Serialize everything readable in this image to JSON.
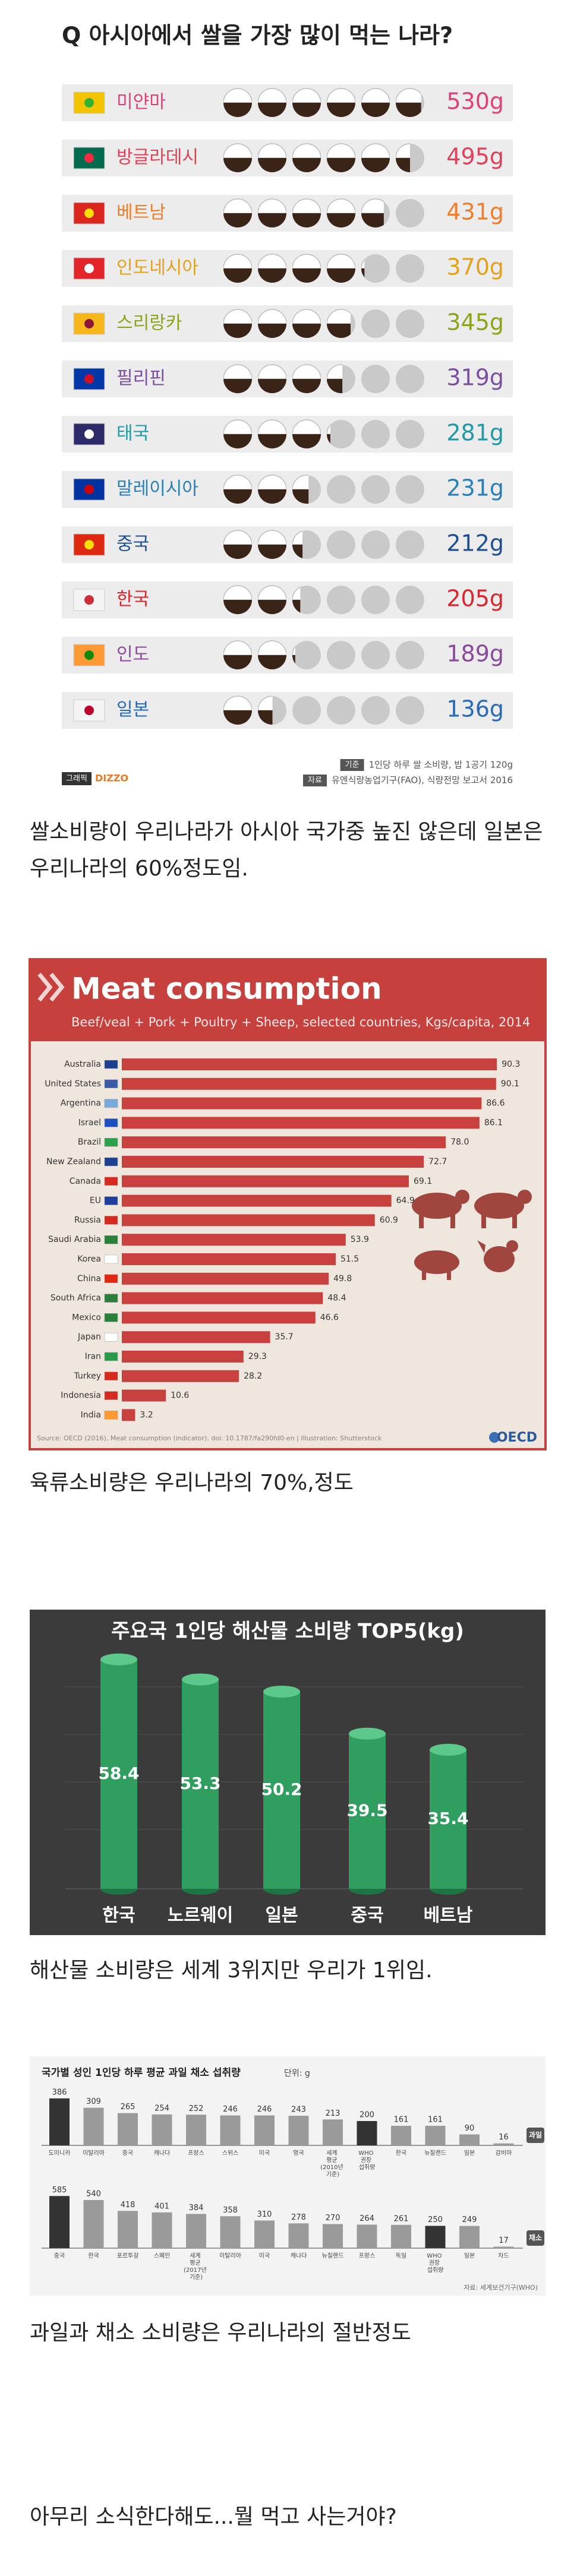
{
  "chart_data": [
    {
      "type": "pictograph",
      "title": "Q 아시아에서 쌀을 가장 많이 먹는 나라?",
      "categories": [
        "미얀마",
        "방글라데시",
        "베트남",
        "인도네시아",
        "스리랑카",
        "필리핀",
        "태국",
        "말레이시아",
        "중국",
        "한국",
        "인도",
        "일본"
      ],
      "values": [
        530,
        495,
        431,
        370,
        345,
        319,
        281,
        231,
        212,
        205,
        189,
        136
      ],
      "value_labels": [
        "530g",
        "495g",
        "431g",
        "370g",
        "345g",
        "319g",
        "281g",
        "231g",
        "212g",
        "205g",
        "189g",
        "136g"
      ],
      "colors": [
        "#e0407a",
        "#e0405a",
        "#ef7d2a",
        "#e3a21a",
        "#8aa51c",
        "#7a4ea0",
        "#1f9aa5",
        "#2a7fb5",
        "#1f4f8f",
        "#d8262e",
        "#8a4a9a",
        "#2a6ab5"
      ],
      "notes": [
        {
          "tag": "기준",
          "text": "1인당 하루 쌀 소비량, 밥 1공기 120g"
        },
        {
          "tag": "자료",
          "text": "유엔식량농업기구(FAO), 식량전망 보고서 2016"
        }
      ],
      "credit": {
        "tag": "그래픽",
        "text": "DIZZO"
      }
    },
    {
      "type": "bar",
      "orientation": "horizontal",
      "title": "Meat consumption",
      "subtitle": "Beef/veal + Pork + Poultry + Sheep, selected countries, Kgs/capita, 2014",
      "categories": [
        "Australia",
        "United States",
        "Argentina",
        "Israel",
        "Brazil",
        "New Zealand",
        "Canada",
        "EU",
        "Russia",
        "Saudi Arabia",
        "Korea",
        "China",
        "South Africa",
        "Mexico",
        "Japan",
        "Iran",
        "Turkey",
        "Indonesia",
        "India"
      ],
      "values": [
        90.3,
        90.1,
        86.6,
        86.1,
        78.0,
        72.7,
        69.1,
        64.9,
        60.9,
        53.9,
        51.5,
        49.8,
        48.4,
        46.6,
        35.7,
        29.3,
        28.2,
        10.6,
        3.2
      ],
      "value_labels": [
        "90.3",
        "90.1",
        "86.6",
        "86.1",
        "78.0",
        "72.7",
        "69.1",
        "64.9",
        "60.9",
        "53.9",
        "51.5",
        "49.8",
        "48.4",
        "46.6",
        "35.7",
        "29.3",
        "28.2",
        "10.6",
        "3.2"
      ],
      "color": "#c9413f",
      "xlim": [
        0,
        100
      ],
      "source": "Source: OECD (2016), Meat consumption (indicator). doi: 10.1787/fa290fd0-en | Illustration: Shutterstock",
      "logo": "OECD"
    },
    {
      "type": "bar",
      "orientation": "vertical",
      "title": "주요국 1인당 해산물 소비량 TOP5(kg)",
      "categories": [
        "한국",
        "노르웨이",
        "일본",
        "중국",
        "베트남"
      ],
      "values": [
        58.4,
        53.3,
        50.2,
        39.5,
        35.4
      ],
      "color": "#2f9e5f",
      "ylim": [
        0,
        62
      ]
    },
    {
      "type": "bar",
      "orientation": "vertical",
      "title": "국가별 성인 1인당 하루 평균 과일 채소 섭취량",
      "unit_label": "단위: g",
      "panels": [
        {
          "name": "과일",
          "categories": [
            "도미니카",
            "이탈리아",
            "중국",
            "캐나다",
            "프랑스",
            "스위스",
            "미국",
            "영국",
            "세계 평균 (2010년 기준)",
            "WHO 권장 섭취량",
            "한국",
            "뉴질랜드",
            "일본",
            "감비아"
          ],
          "values": [
            386,
            309,
            265,
            254,
            252,
            246,
            246,
            243,
            213,
            200,
            161,
            161,
            90,
            16
          ],
          "colors": [
            "#333333",
            "#9a9a9a",
            "#9a9a9a",
            "#9a9a9a",
            "#9a9a9a",
            "#9a9a9a",
            "#9a9a9a",
            "#9a9a9a",
            "#9a9a9a",
            "#333333",
            "#9a9a9a",
            "#9a9a9a",
            "#9a9a9a",
            "#9a9a9a"
          ],
          "ylim": [
            0,
            400
          ]
        },
        {
          "name": "채소",
          "categories": [
            "중국",
            "한국",
            "포르투갈",
            "스페인",
            "세계 평균 (2017년 기준)",
            "이탈리아",
            "미국",
            "캐나다",
            "뉴질랜드",
            "프랑스",
            "독일",
            "WHO 권장 섭취량",
            "일본",
            "차드"
          ],
          "values": [
            585,
            540,
            418,
            401,
            384,
            358,
            310,
            278,
            270,
            264,
            261,
            250,
            249,
            17
          ],
          "colors": [
            "#333333",
            "#9a9a9a",
            "#9a9a9a",
            "#9a9a9a",
            "#9a9a9a",
            "#9a9a9a",
            "#9a9a9a",
            "#9a9a9a",
            "#9a9a9a",
            "#9a9a9a",
            "#9a9a9a",
            "#333333",
            "#9a9a9a",
            "#9a9a9a"
          ],
          "ylim": [
            0,
            600
          ]
        }
      ],
      "source": "자료: 세계보건기구(WHO)"
    }
  ],
  "post_texts": [
    "쌀소비량이 우리나라가 아시아 국가중 높진 않은데 일본은 우리나라의 60%정도임.",
    "육류소비량은 우리나라의 70%,정도",
    "해산물 소비량은 세계 3위지만 우리가 1위임.",
    "과일과 채소 소비량은 우리나라의 절반정도",
    "아무리 소식한다해도...뭘 먹고 사는거야?"
  ]
}
